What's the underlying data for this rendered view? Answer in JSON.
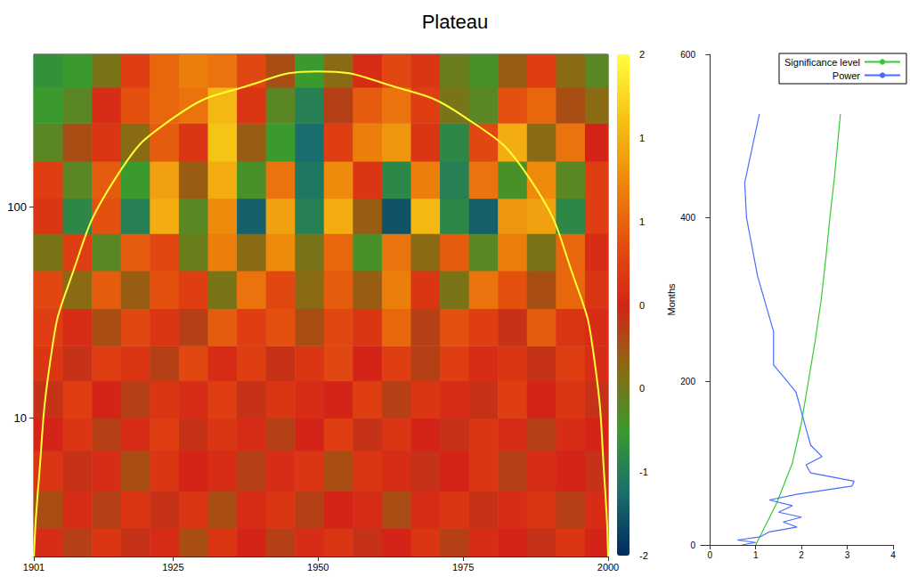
{
  "chart_data": [
    {
      "type": "heatmap",
      "title": "Plateau",
      "log": "y",
      "xlim": [
        1901,
        2000
      ],
      "xticks": [
        1901,
        1925,
        1950,
        1975,
        2000
      ],
      "ylim": [
        2.2,
        530
      ],
      "yticks": [
        10,
        100
      ],
      "x_edges": [
        1901,
        1906,
        1911,
        1916,
        1921,
        1926,
        1931,
        1936,
        1941,
        1946,
        1951,
        1956,
        1961,
        1966,
        1971,
        1976,
        1981,
        1986,
        1991,
        1996,
        2000
      ],
      "y_edges": [
        2.2,
        3,
        4.5,
        7,
        10,
        15,
        22,
        33,
        50,
        75,
        110,
        165,
        250,
        370,
        530
      ],
      "values": [
        [
          0.1,
          -0.2,
          0.2,
          -0.1,
          0.1,
          -0.3,
          0.2,
          0,
          -0.2,
          0.1,
          0.2,
          -0.1,
          0,
          0.2,
          -0.2,
          0.1,
          0,
          -0.1,
          0.2,
          0
        ],
        [
          -0.3,
          0.1,
          -0.2,
          0.2,
          -0.1,
          0.2,
          -0.3,
          0.1,
          0.2,
          -0.2,
          0,
          0.1,
          -0.3,
          0.1,
          0.2,
          -0.1,
          0.1,
          0.2,
          -0.2,
          0.1
        ],
        [
          0.2,
          -0.1,
          0.1,
          -0.3,
          0.2,
          0,
          0.1,
          -0.2,
          0.1,
          0.2,
          -0.3,
          0.2,
          0.1,
          -0.1,
          0,
          0.2,
          -0.2,
          0.1,
          0,
          -0.1
        ],
        [
          0,
          0.2,
          -0.2,
          0.1,
          0.3,
          -0.1,
          0.2,
          0.1,
          -0.2,
          0,
          0.3,
          -0.1,
          0.2,
          0,
          -0.1,
          0.2,
          0.1,
          -0.2,
          0.1,
          0
        ],
        [
          -0.1,
          0.3,
          0,
          -0.2,
          0.2,
          0.1,
          0.3,
          -0.1,
          0.2,
          0.1,
          0,
          0.3,
          -0.2,
          0.2,
          0.1,
          -0.1,
          0.3,
          0,
          0.2,
          -0.1
        ],
        [
          0.2,
          -0.1,
          0.3,
          0.2,
          -0.2,
          0.4,
          0.1,
          0.3,
          -0.1,
          0.2,
          0.4,
          0,
          0.3,
          -0.2,
          0.3,
          0.1,
          0.2,
          -0.1,
          0.3,
          0.1
        ],
        [
          0.3,
          0.1,
          -0.3,
          0.4,
          0.2,
          -0.2,
          0.6,
          0.3,
          0.5,
          -0.3,
          0.4,
          0.2,
          0.7,
          -0.2,
          0.5,
          0.3,
          -0.1,
          0.6,
          0.2,
          0.1
        ],
        [
          0.4,
          -0.5,
          0.6,
          -0.4,
          0.5,
          0.3,
          -0.6,
          0.8,
          0.4,
          -0.5,
          0.6,
          -0.4,
          0.9,
          0.2,
          -0.6,
          0.8,
          0.5,
          -0.3,
          0.7,
          0.2
        ],
        [
          -0.6,
          0.3,
          -0.8,
          0.6,
          0.4,
          -0.7,
          0.9,
          -0.5,
          1.0,
          -0.6,
          0.7,
          -0.9,
          0.8,
          -0.5,
          0.6,
          -0.8,
          0.9,
          -0.6,
          0.7,
          0.1
        ],
        [
          0.2,
          -1.2,
          0.5,
          -1.3,
          1.3,
          -0.8,
          1.0,
          -1.6,
          1.2,
          -1.3,
          1.3,
          -0.4,
          -1.7,
          1.4,
          -1.2,
          -1.6,
          1.1,
          1.2,
          -1.2,
          0.3
        ],
        [
          0.3,
          -0.8,
          0.6,
          -1.0,
          1.2,
          -0.4,
          1.3,
          -0.9,
          0.8,
          -1.4,
          1.0,
          0.2,
          -1.2,
          0.9,
          -1.3,
          0.8,
          -0.9,
          1.0,
          -0.8,
          0.3
        ],
        [
          -0.8,
          -0.3,
          0.2,
          -0.5,
          0.6,
          0.2,
          1.5,
          -0.4,
          -1.0,
          -1.5,
          0.3,
          0.9,
          1.1,
          0.2,
          -1.2,
          0.4,
          1.3,
          -0.5,
          0.8,
          0
        ],
        [
          -1.0,
          -0.8,
          0.1,
          0.5,
          0.7,
          0.8,
          1.4,
          0.2,
          -0.8,
          -1.3,
          -0.2,
          0.6,
          0.8,
          0.3,
          -0.6,
          -0.8,
          0.5,
          0.7,
          -0.3,
          -0.5
        ],
        [
          -1.1,
          -1.0,
          -0.6,
          0.3,
          0.7,
          0.9,
          0.8,
          0.4,
          -0.3,
          -1.0,
          -0.5,
          0.1,
          0.4,
          0.2,
          -0.7,
          -0.9,
          -0.4,
          0.3,
          -0.5,
          -0.8
        ]
      ],
      "colorbar_range": [
        -2,
        2
      ],
      "colorbar_ticks": [
        {
          "value": 2,
          "label": "2"
        },
        {
          "value": 1.333,
          "label": "1"
        },
        {
          "value": 0.667,
          "label": "1"
        },
        {
          "value": 0,
          "label": "0"
        },
        {
          "value": -0.667,
          "label": "0"
        },
        {
          "value": -1.333,
          "label": "-1"
        },
        {
          "value": -2,
          "label": "-2"
        }
      ],
      "cone_of_influence": {
        "color": "#ffff33",
        "x": [
          1901,
          1901.7,
          1904,
          1907,
          1915,
          1925.5,
          1938,
          1950,
          1962.5,
          1975,
          1986.5,
          1994.5,
          1997.5,
          1999.5,
          2000
        ],
        "y": [
          2.2,
          4.5,
          20,
          43,
          136,
          270,
          377,
          440,
          377,
          270,
          136,
          43,
          20,
          4.5,
          2.2
        ]
      }
    },
    {
      "type": "line",
      "ylabel": "Months",
      "xlim": [
        -0.2,
        4
      ],
      "xticks": [
        0,
        1,
        2,
        3,
        4
      ],
      "ylim": [
        0,
        600
      ],
      "yticks": [
        0,
        200,
        400,
        600
      ],
      "legend": "upper right",
      "series": [
        {
          "name": "Significance level",
          "color": "#33cc33",
          "values": [
            1.0,
            1.45,
            1.8,
            2.0,
            2.15,
            2.3,
            2.43,
            2.53,
            2.62,
            2.72,
            2.85
          ],
          "months": [
            0,
            50,
            100,
            150,
            200,
            250,
            300,
            350,
            400,
            450,
            527
          ]
        },
        {
          "name": "Power",
          "color": "#4a6cff",
          "values": [
            1.08,
            0.76,
            0.8,
            1.04,
            1.39,
            1.39,
            1.63,
            1.88,
            2.08,
            2.2,
            2.45,
            2.1,
            2.2,
            3.15,
            3.1,
            1.9,
            1.3,
            1.8,
            1.5,
            2.0,
            1.6,
            1.9,
            1.3,
            1.1,
            0.6,
            1.0,
            0.7
          ],
          "months": [
            527,
            443,
            400,
            329,
            261,
            220,
            204,
            187,
            146,
            122,
            108,
            98,
            88,
            78,
            72,
            62,
            55,
            48,
            40,
            34,
            28,
            22,
            16,
            10,
            6,
            3,
            0
          ]
        }
      ]
    }
  ]
}
